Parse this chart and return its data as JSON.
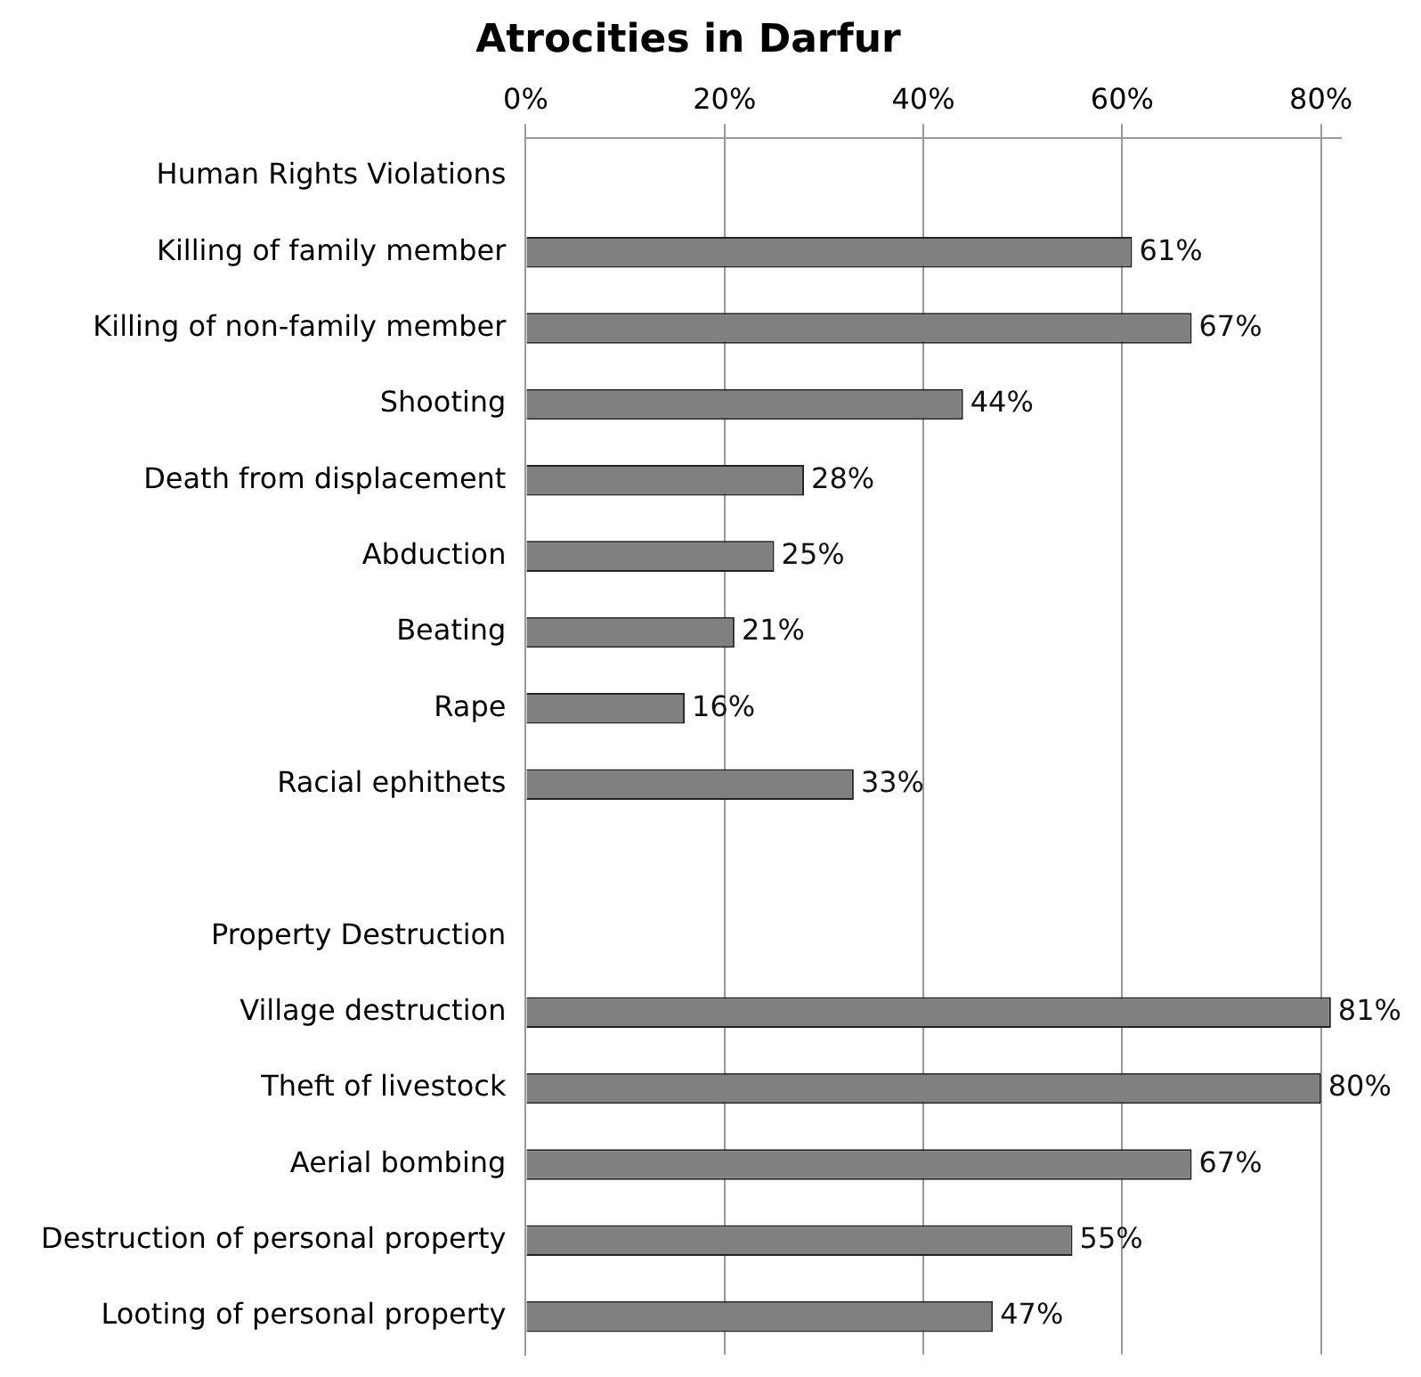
{
  "chart_data": {
    "type": "bar",
    "orientation": "horizontal",
    "title": "Atrocities in Darfur",
    "categories": [
      "Human Rights Violations",
      "Killing of family member",
      "Killing of non-family member",
      "Shooting",
      "Death from displacement",
      "Abduction",
      "Beating",
      "Rape",
      "Racial ephithets",
      null,
      "Property Destruction",
      "Village destruction",
      "Theft of livestock",
      "Aerial bombing",
      "Destruction of personal property",
      "Looting of personal property"
    ],
    "values": [
      null,
      61,
      67,
      44,
      28,
      25,
      21,
      16,
      33,
      null,
      null,
      81,
      80,
      67,
      55,
      47
    ],
    "value_labels": [
      null,
      "61%",
      "67%",
      "44%",
      "28%",
      "25%",
      "21%",
      "16%",
      "33%",
      null,
      null,
      "81%",
      "80%",
      "67%",
      "55%",
      "47%"
    ],
    "color": "#808080",
    "xlim": [
      0,
      82
    ],
    "xticks": [
      {
        "value": 0,
        "label": "0%"
      },
      {
        "value": 20,
        "label": "20%"
      },
      {
        "value": 40,
        "label": "40%"
      },
      {
        "value": 60,
        "label": "60%"
      },
      {
        "value": 80,
        "label": "80%"
      }
    ],
    "grid": "x",
    "legend": false
  }
}
